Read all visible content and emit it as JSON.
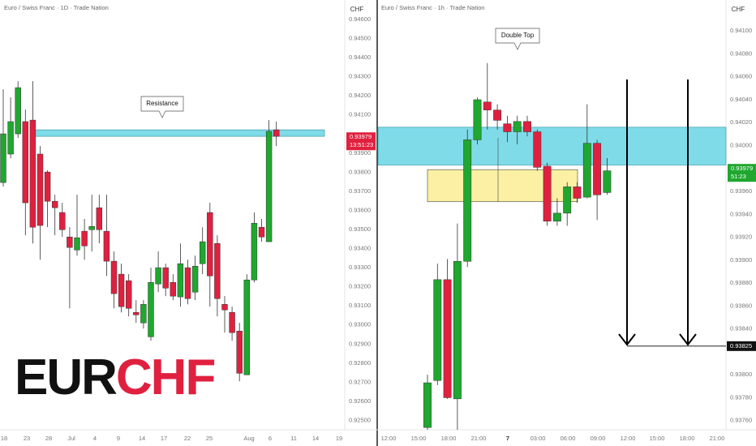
{
  "chart_data": [
    {
      "type": "candlestick",
      "title": "Euro / Swiss Franc · 1D · Trade Nation",
      "currency": "CHF",
      "annotation": "Resistance",
      "up_color": "#1fa72f",
      "down_color": "#e0203f",
      "zone_color": "#7fdbe8",
      "zone": [
        0.94022,
        0.93988
      ],
      "last_price": 0.93979,
      "countdown": "13:51:23",
      "ylim": [
        0.92451,
        0.94702
      ],
      "yticks": [
        {
          "value": 0.946,
          "label": "0.94600"
        },
        {
          "value": 0.945,
          "label": "0.94500"
        },
        {
          "value": 0.944,
          "label": "0.94400"
        },
        {
          "value": 0.943,
          "label": "0.94300"
        },
        {
          "value": 0.942,
          "label": "0.94200"
        },
        {
          "value": 0.941,
          "label": "0.94100"
        },
        {
          "value": 0.939,
          "label": "0.93900"
        },
        {
          "value": 0.938,
          "label": "0.93800"
        },
        {
          "value": 0.937,
          "label": "0.93700"
        },
        {
          "value": 0.936,
          "label": "0.93600"
        },
        {
          "value": 0.935,
          "label": "0.93500"
        },
        {
          "value": 0.934,
          "label": "0.93400"
        },
        {
          "value": 0.933,
          "label": "0.93300"
        },
        {
          "value": 0.932,
          "label": "0.93200"
        },
        {
          "value": 0.931,
          "label": "0.93100"
        },
        {
          "value": 0.93,
          "label": "0.93000"
        },
        {
          "value": 0.929,
          "label": "0.92900"
        },
        {
          "value": 0.928,
          "label": "0.92800"
        },
        {
          "value": 0.927,
          "label": "0.92700"
        },
        {
          "value": 0.926,
          "label": "0.92600"
        },
        {
          "value": 0.925,
          "label": "0.92500"
        }
      ],
      "xticks": [
        "18",
        "23",
        "28",
        "Jul",
        "4",
        "9",
        "14",
        "17",
        "22",
        "25",
        "Aug",
        "6",
        "11",
        "14",
        "19"
      ],
      "open": [
        0.93746,
        0.93895,
        0.94001,
        0.94065,
        0.94073,
        0.93895,
        0.93801,
        0.93648,
        0.93589,
        0.93461,
        0.93393,
        0.93491,
        0.93499,
        0.93614,
        0.93491,
        0.93334,
        0.93266,
        0.93232,
        0.93066,
        0.93011,
        0.92938,
        0.93215,
        0.933,
        0.93223,
        0.93147,
        0.933,
        0.93172,
        0.93321,
        0.93589,
        0.93427,
        0.93108,
        0.93066,
        0.92968,
        0.92739,
        0.93236,
        0.93512,
        0.93436,
        0.94022
      ],
      "high": [
        0.94235,
        0.94192,
        0.94277,
        0.94128,
        0.94277,
        0.93937,
        0.9381,
        0.93682,
        0.9364,
        0.93512,
        0.93682,
        0.93555,
        0.93682,
        0.93682,
        0.93682,
        0.93385,
        0.93321,
        0.93266,
        0.9313,
        0.9313,
        0.933,
        0.93385,
        0.93321,
        0.93266,
        0.93427,
        0.93342,
        0.93363,
        0.93512,
        0.9364,
        0.9347,
        0.93151,
        0.93096,
        0.93011,
        0.93266,
        0.93589,
        0.93555,
        0.94073,
        0.94065
      ],
      "low": [
        0.93725,
        0.93873,
        0.9398,
        0.9347,
        0.93427,
        0.93342,
        0.93512,
        0.9347,
        0.93461,
        0.93087,
        0.93363,
        0.93342,
        0.93385,
        0.93427,
        0.93257,
        0.93087,
        0.93066,
        0.93045,
        0.93011,
        0.92981,
        0.92917,
        0.93172,
        0.93151,
        0.9313,
        0.93096,
        0.93108,
        0.9313,
        0.93266,
        0.93096,
        0.93045,
        0.9296,
        0.92917,
        0.92705,
        0.92739,
        0.93223,
        0.93436,
        0.93436,
        0.93937
      ],
      "close": [
        0.94001,
        0.94065,
        0.94243,
        0.9364,
        0.93512,
        0.93521,
        0.93648,
        0.93614,
        0.93499,
        0.93406,
        0.93457,
        0.93414,
        0.93516,
        0.93499,
        0.93334,
        0.93164,
        0.93096,
        0.93087,
        0.93053,
        0.93108,
        0.93223,
        0.933,
        0.93193,
        0.93151,
        0.93321,
        0.93138,
        0.93308,
        0.93436,
        0.93257,
        0.93138,
        0.93079,
        0.9296,
        0.92747,
        0.93236,
        0.93533,
        0.93461,
        0.94014,
        0.93988
      ]
    },
    {
      "type": "candlestick",
      "title": "Euro / Swiss Franc · 1h · Trade Nation",
      "currency": "CHF",
      "annotation": "Double Top",
      "up_color": "#1fa72f",
      "down_color": "#e0203f",
      "zone_color": "#7fdbe8",
      "zone2_color": "#fbf0a3",
      "zone": [
        0.94016,
        0.93983
      ],
      "zone2": [
        0.93979,
        0.93951
      ],
      "last_price": 0.93979,
      "countdown": "51:23",
      "target": 0.93825,
      "ylim": [
        0.93752,
        0.94127
      ],
      "yticks": [
        {
          "value": 0.941,
          "label": "0.94100"
        },
        {
          "value": 0.9408,
          "label": "0.94080"
        },
        {
          "value": 0.9406,
          "label": "0.94060"
        },
        {
          "value": 0.9404,
          "label": "0.94040"
        },
        {
          "value": 0.9402,
          "label": "0.94020"
        },
        {
          "value": 0.94,
          "label": "0.94000"
        },
        {
          "value": 0.9396,
          "label": "0.93960"
        },
        {
          "value": 0.9394,
          "label": "0.93940"
        },
        {
          "value": 0.9392,
          "label": "0.93920"
        },
        {
          "value": 0.939,
          "label": "0.93900"
        },
        {
          "value": 0.9388,
          "label": "0.93880"
        },
        {
          "value": 0.9386,
          "label": "0.93860"
        },
        {
          "value": 0.9384,
          "label": "0.93840"
        },
        {
          "value": 0.938,
          "label": "0.93800"
        },
        {
          "value": 0.9378,
          "label": "0.93780"
        },
        {
          "value": 0.9376,
          "label": "0.93760"
        }
      ],
      "xticks": [
        "12:00",
        "15:00",
        "18:00",
        "21:00",
        "7",
        "03:00",
        "06:00",
        "09:00",
        "12:00",
        "15:00",
        "18:00",
        "21:00"
      ],
      "open": [
        0.93754,
        0.93795,
        0.93883,
        0.93779,
        0.93899,
        0.94005,
        0.94038,
        0.94031,
        0.94019,
        0.94012,
        0.94021,
        0.94012,
        0.93982,
        0.93934,
        0.93941,
        0.93964,
        0.93955,
        0.94002,
        0.93959
      ],
      "high": [
        0.938,
        0.93897,
        0.93901,
        0.93932,
        0.94014,
        0.94042,
        0.94072,
        0.94036,
        0.94026,
        0.94026,
        0.94026,
        0.94014,
        0.93985,
        0.93954,
        0.93968,
        0.93968,
        0.94036,
        0.94005,
        0.93989
      ],
      "low": [
        0.93752,
        0.93791,
        0.93779,
        0.93752,
        0.93894,
        0.94001,
        0.94014,
        0.94014,
        0.94003,
        0.94001,
        0.94008,
        0.93978,
        0.9393,
        0.9393,
        0.9393,
        0.9395,
        0.93954,
        0.93935,
        0.93957
      ],
      "close": [
        0.93793,
        0.93883,
        0.9378,
        0.93899,
        0.94005,
        0.9404,
        0.94031,
        0.94022,
        0.94012,
        0.94021,
        0.94012,
        0.93981,
        0.93934,
        0.93941,
        0.93964,
        0.93954,
        0.94002,
        0.93957,
        0.93978
      ]
    }
  ],
  "brand": {
    "base": "EUR",
    "quote": "CHF",
    "base_color": "#111111",
    "quote_color": "#e0203f"
  }
}
